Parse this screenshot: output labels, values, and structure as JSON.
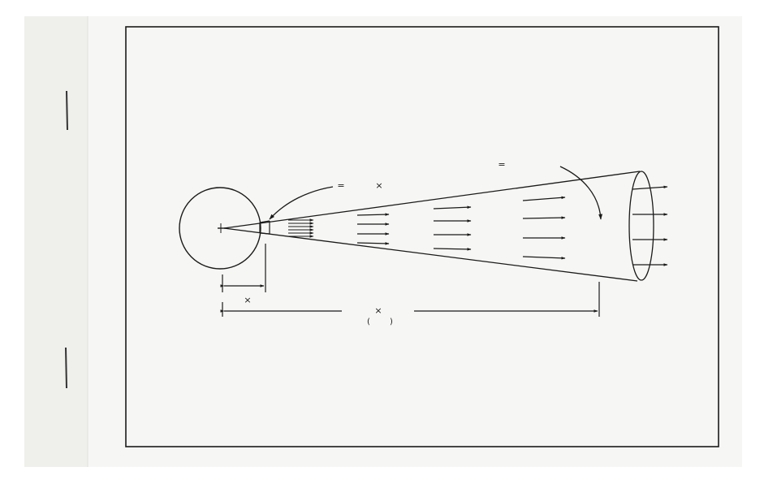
{
  "colors": {
    "background": "#ffffff",
    "card": "#f6f6f4",
    "binding_strip": "#efefec",
    "ink": "#1a1a1a"
  },
  "labels": {
    "equals_near": "=",
    "times_near": "×",
    "equals_far": "=",
    "short_span_times": "×",
    "long_span_times": "×",
    "paren_open": "(",
    "paren_close": ")"
  }
}
